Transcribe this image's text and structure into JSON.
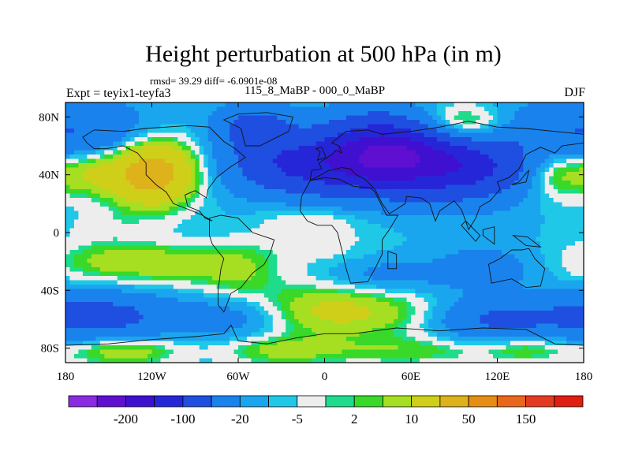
{
  "chart_data": {
    "type": "heatmap",
    "title": "Height perturbation at 500 hPa (in m)",
    "stats": "rmsd= 39.29 diff= -6.0901e-08",
    "left_label": "Expt = teyix1-teyfa3",
    "center_label": "115_8_MaBP - 000_0_MaBP",
    "right_label": "DJF",
    "xlabel": "",
    "ylabel": "",
    "xlim": [
      -180,
      180
    ],
    "ylim": [
      -90,
      90
    ],
    "x_ticks": [
      {
        "value": -180,
        "label": "180"
      },
      {
        "value": -120,
        "label": "120W"
      },
      {
        "value": -60,
        "label": "60W"
      },
      {
        "value": 0,
        "label": "0"
      },
      {
        "value": 60,
        "label": "60E"
      },
      {
        "value": 120,
        "label": "120E"
      },
      {
        "value": 180,
        "label": "180"
      }
    ],
    "y_ticks": [
      {
        "value": 80,
        "label": "80N"
      },
      {
        "value": 40,
        "label": "40N"
      },
      {
        "value": 0,
        "label": "0"
      },
      {
        "value": -40,
        "label": "40S"
      },
      {
        "value": -80,
        "label": "80S"
      }
    ],
    "colorbar": {
      "colors": [
        "#8a2be2",
        "#5f0fd0",
        "#4010d0",
        "#2626d9",
        "#1f4fe0",
        "#1a82ec",
        "#1aa6ee",
        "#20c8e8",
        "#ededed",
        "#1fdc8c",
        "#39d829",
        "#a6de22",
        "#cfcf1a",
        "#ddb21a",
        "#e68e14",
        "#e9671c",
        "#e33b22",
        "#e01e12"
      ],
      "level_labels": [
        {
          "after_index": 1,
          "label": "-200"
        },
        {
          "after_index": 3,
          "label": "-100"
        },
        {
          "after_index": 5,
          "label": "-20"
        },
        {
          "after_index": 7,
          "label": "-5"
        },
        {
          "after_index": 9,
          "label": "2"
        },
        {
          "after_index": 11,
          "label": "10"
        },
        {
          "after_index": 13,
          "label": "50"
        },
        {
          "after_index": 15,
          "label": "150"
        }
      ]
    },
    "field_blobs": [
      {
        "lon": 180,
        "lat": 62,
        "rx": 55,
        "ry": 26,
        "v": -55
      },
      {
        "lon": 45,
        "lat": 58,
        "rx": 45,
        "ry": 22,
        "v": -150
      },
      {
        "lon": -48,
        "lat": 72,
        "rx": 25,
        "ry": 15,
        "v": -60
      },
      {
        "lon": 20,
        "lat": 44,
        "rx": 70,
        "ry": 20,
        "v": -90
      },
      {
        "lon": 100,
        "lat": 45,
        "rx": 40,
        "ry": 22,
        "v": -80
      },
      {
        "lon": -30,
        "lat": 50,
        "rx": 30,
        "ry": 18,
        "v": -35
      },
      {
        "lon": -165,
        "lat": 45,
        "rx": 25,
        "ry": 18,
        "v": 45
      },
      {
        "lon": -120,
        "lat": 42,
        "rx": 30,
        "ry": 22,
        "v": 90
      },
      {
        "lon": 90,
        "lat": 72,
        "rx": 35,
        "ry": 15,
        "v": 55
      },
      {
        "lon": 160,
        "lat": 45,
        "rx": 25,
        "ry": 20,
        "v": 45
      },
      {
        "lon": -10,
        "lat": 10,
        "rx": 35,
        "ry": 12,
        "v": 12
      },
      {
        "lon": -5,
        "lat": -10,
        "rx": 40,
        "ry": 15,
        "v": 8
      },
      {
        "lon": -150,
        "lat": 5,
        "rx": 30,
        "ry": 12,
        "v": 8
      },
      {
        "lon": -150,
        "lat": -20,
        "rx": 40,
        "ry": 14,
        "v": 22
      },
      {
        "lon": -105,
        "lat": -22,
        "rx": 35,
        "ry": 14,
        "v": 18
      },
      {
        "lon": -60,
        "lat": -25,
        "rx": 30,
        "ry": 18,
        "v": 20
      },
      {
        "lon": 45,
        "lat": -30,
        "rx": 40,
        "ry": 12,
        "v": -18
      },
      {
        "lon": 110,
        "lat": -25,
        "rx": 30,
        "ry": 14,
        "v": -25
      },
      {
        "lon": -160,
        "lat": -58,
        "rx": 50,
        "ry": 15,
        "v": -60
      },
      {
        "lon": -60,
        "lat": -58,
        "rx": 45,
        "ry": 15,
        "v": -30
      },
      {
        "lon": 120,
        "lat": -60,
        "rx": 40,
        "ry": 15,
        "v": -45
      },
      {
        "lon": 0,
        "lat": -55,
        "rx": 70,
        "ry": 18,
        "v": 38
      },
      {
        "lon": -140,
        "lat": -82,
        "rx": 40,
        "ry": 10,
        "v": 28
      },
      {
        "lon": -30,
        "lat": -82,
        "rx": 40,
        "ry": 10,
        "v": 22
      },
      {
        "lon": 60,
        "lat": -82,
        "rx": 60,
        "ry": 10,
        "v": 18
      },
      {
        "lon": 140,
        "lat": -80,
        "rx": 30,
        "ry": 10,
        "v": 20
      }
    ],
    "field_base": -10,
    "continents": [
      [
        [
          -168,
          66
        ],
        [
          -160,
          71
        ],
        [
          -140,
          70
        ],
        [
          -125,
          72
        ],
        [
          -110,
          73
        ],
        [
          -95,
          74
        ],
        [
          -80,
          73
        ],
        [
          -70,
          63
        ],
        [
          -62,
          58
        ],
        [
          -55,
          52
        ],
        [
          -66,
          45
        ],
        [
          -75,
          38
        ],
        [
          -81,
          30
        ],
        [
          -82,
          24
        ],
        [
          -90,
          29
        ],
        [
          -97,
          26
        ],
        [
          -95,
          18
        ],
        [
          -87,
          15
        ],
        [
          -83,
          10
        ],
        [
          -78,
          8
        ],
        [
          -85,
          12
        ],
        [
          -92,
          15
        ],
        [
          -105,
          20
        ],
        [
          -110,
          28
        ],
        [
          -117,
          33
        ],
        [
          -124,
          40
        ],
        [
          -124,
          48
        ],
        [
          -130,
          55
        ],
        [
          -140,
          60
        ],
        [
          -152,
          58
        ],
        [
          -160,
          58
        ],
        [
          -165,
          62
        ],
        [
          -168,
          66
        ]
      ],
      [
        [
          -55,
          60
        ],
        [
          -45,
          60
        ],
        [
          -25,
          70
        ],
        [
          -22,
          80
        ],
        [
          -40,
          83
        ],
        [
          -60,
          82
        ],
        [
          -70,
          78
        ],
        [
          -58,
          72
        ],
        [
          -55,
          60
        ]
      ],
      [
        [
          -80,
          10
        ],
        [
          -72,
          12
        ],
        [
          -60,
          10
        ],
        [
          -50,
          0
        ],
        [
          -35,
          -5
        ],
        [
          -38,
          -15
        ],
        [
          -42,
          -22
        ],
        [
          -50,
          -28
        ],
        [
          -58,
          -38
        ],
        [
          -65,
          -42
        ],
        [
          -68,
          -50
        ],
        [
          -70,
          -55
        ],
        [
          -74,
          -50
        ],
        [
          -74,
          -40
        ],
        [
          -72,
          -25
        ],
        [
          -70,
          -18
        ],
        [
          -78,
          -8
        ],
        [
          -80,
          -2
        ],
        [
          -80,
          10
        ]
      ],
      [
        [
          -10,
          36
        ],
        [
          0,
          38
        ],
        [
          10,
          37
        ],
        [
          20,
          32
        ],
        [
          32,
          31
        ],
        [
          35,
          28
        ],
        [
          43,
          12
        ],
        [
          51,
          12
        ],
        [
          45,
          2
        ],
        [
          40,
          -5
        ],
        [
          40,
          -15
        ],
        [
          35,
          -25
        ],
        [
          30,
          -34
        ],
        [
          18,
          -35
        ],
        [
          15,
          -25
        ],
        [
          12,
          -12
        ],
        [
          9,
          0
        ],
        [
          5,
          5
        ],
        [
          -5,
          5
        ],
        [
          -12,
          8
        ],
        [
          -17,
          15
        ],
        [
          -16,
          25
        ],
        [
          -10,
          36
        ]
      ],
      [
        [
          -10,
          36
        ],
        [
          -9,
          43
        ],
        [
          -2,
          44
        ],
        [
          -4,
          48
        ],
        [
          5,
          54
        ],
        [
          8,
          57
        ],
        [
          12,
          55
        ],
        [
          10,
          60
        ],
        [
          5,
          62
        ],
        [
          15,
          70
        ],
        [
          30,
          71
        ],
        [
          40,
          68
        ],
        [
          60,
          70
        ],
        [
          80,
          73
        ],
        [
          100,
          77
        ],
        [
          120,
          73
        ],
        [
          140,
          72
        ],
        [
          160,
          70
        ],
        [
          180,
          68
        ],
        [
          180,
          62
        ],
        [
          165,
          60
        ],
        [
          160,
          55
        ],
        [
          150,
          59
        ],
        [
          140,
          54
        ],
        [
          135,
          44
        ],
        [
          128,
          38
        ],
        [
          120,
          35
        ],
        [
          122,
          30
        ],
        [
          115,
          22
        ],
        [
          108,
          18
        ],
        [
          105,
          10
        ],
        [
          100,
          2
        ],
        [
          98,
          8
        ],
        [
          95,
          16
        ],
        [
          90,
          22
        ],
        [
          80,
          15
        ],
        [
          77,
          8
        ],
        [
          73,
          20
        ],
        [
          67,
          24
        ],
        [
          57,
          25
        ],
        [
          56,
          20
        ],
        [
          45,
          13
        ],
        [
          40,
          20
        ],
        [
          35,
          30
        ],
        [
          28,
          37
        ],
        [
          22,
          40
        ],
        [
          18,
          44
        ],
        [
          12,
          45
        ],
        [
          8,
          44
        ],
        [
          3,
          43
        ],
        [
          -10,
          36
        ]
      ],
      [
        [
          -5,
          50
        ],
        [
          -3,
          56
        ],
        [
          -6,
          58
        ],
        [
          -2,
          59
        ],
        [
          1,
          52
        ],
        [
          -5,
          50
        ]
      ],
      [
        [
          114,
          -22
        ],
        [
          122,
          -18
        ],
        [
          130,
          -12
        ],
        [
          137,
          -12
        ],
        [
          142,
          -11
        ],
        [
          146,
          -18
        ],
        [
          153,
          -25
        ],
        [
          150,
          -37
        ],
        [
          140,
          -38
        ],
        [
          130,
          -32
        ],
        [
          116,
          -35
        ],
        [
          114,
          -22
        ]
      ],
      [
        [
          95,
          5
        ],
        [
          105,
          -6
        ],
        [
          108,
          -2
        ],
        [
          98,
          8
        ],
        [
          95,
          5
        ]
      ],
      [
        [
          110,
          -2
        ],
        [
          118,
          -8
        ],
        [
          118,
          4
        ],
        [
          110,
          2
        ],
        [
          110,
          -2
        ]
      ],
      [
        [
          131,
          -2
        ],
        [
          141,
          -3
        ],
        [
          150,
          -10
        ],
        [
          140,
          -9
        ],
        [
          131,
          -2
        ]
      ],
      [
        [
          130,
          33
        ],
        [
          140,
          35
        ],
        [
          142,
          43
        ],
        [
          140,
          41
        ],
        [
          135,
          35
        ],
        [
          130,
          33
        ]
      ],
      [
        [
          44,
          -13
        ],
        [
          50,
          -15
        ],
        [
          50,
          -25
        ],
        [
          44,
          -25
        ],
        [
          44,
          -13
        ]
      ],
      [
        [
          -180,
          -90
        ],
        [
          180,
          -90
        ],
        [
          180,
          -78
        ],
        [
          160,
          -77
        ],
        [
          140,
          -67
        ],
        [
          110,
          -66
        ],
        [
          80,
          -68
        ],
        [
          50,
          -66
        ],
        [
          20,
          -70
        ],
        [
          0,
          -70
        ],
        [
          -20,
          -73
        ],
        [
          -40,
          -77
        ],
        [
          -60,
          -75
        ],
        [
          -65,
          -64
        ],
        [
          -70,
          -70
        ],
        [
          -90,
          -72
        ],
        [
          -120,
          -74
        ],
        [
          -150,
          -77
        ],
        [
          -180,
          -78
        ],
        [
          -180,
          -90
        ]
      ]
    ]
  }
}
